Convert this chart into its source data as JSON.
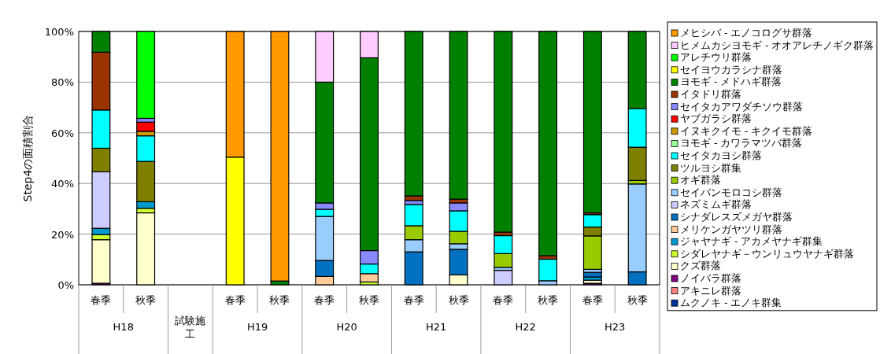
{
  "chart_data": {
    "type": "bar",
    "stacked": true,
    "ylabel": "Step4の面積割合",
    "categories": [
      "春季",
      "秋季",
      null,
      "春季",
      "秋季",
      "春季",
      "秋季",
      "春季",
      "秋季",
      "春季",
      "秋季",
      "春季",
      "秋季"
    ],
    "annotations": [
      "H18",
      "試験施工",
      "H19",
      "H20",
      "H21",
      "H22",
      "H23"
    ],
    "ylim": [
      0,
      100
    ],
    "yticks": [
      {
        "value": 0,
        "label": "0%"
      },
      {
        "value": 20,
        "label": "20%"
      },
      {
        "value": 40,
        "label": "40%"
      },
      {
        "value": 60,
        "label": "60%"
      },
      {
        "value": 80,
        "label": "80%"
      },
      {
        "value": 100,
        "label": "100%"
      }
    ],
    "grid": "y",
    "legend": "right",
    "series": [
      {
        "name": "ムクノキ - エノキ群集",
        "color": "#003399",
        "values": [
          0,
          0,
          null,
          0,
          0,
          0,
          0,
          0,
          0,
          0,
          0,
          0,
          0
        ]
      },
      {
        "name": "アキニレ群落",
        "color": "#ff8080",
        "values": [
          0,
          0,
          null,
          0,
          0,
          0,
          0,
          0,
          0,
          0,
          0,
          0,
          0
        ]
      },
      {
        "name": "ノイバラ群落",
        "color": "#800080",
        "values": [
          0.6,
          0,
          null,
          0,
          0,
          0,
          0,
          0,
          0,
          0,
          0,
          0.6,
          0
        ]
      },
      {
        "name": "クズ群落",
        "color": "#ffffcc",
        "values": [
          17.2,
          28.4,
          null,
          0,
          0,
          0,
          0,
          0,
          3.9,
          0,
          0,
          1.2,
          0
        ]
      },
      {
        "name": "シダレヤナギ－ウンリュウヤナギ群落",
        "color": "#ccff33",
        "values": [
          2.0,
          1.8,
          null,
          0,
          0,
          0,
          1.1,
          0,
          0,
          0,
          0,
          0,
          0
        ]
      },
      {
        "name": "ジャヤナギ - アカメヤナギ群集",
        "color": "#0099cc",
        "values": [
          2.5,
          2.6,
          null,
          0,
          0,
          0,
          0,
          0,
          0,
          0,
          0,
          1.3,
          0
        ]
      },
      {
        "name": "メリケンガヤツリ群落",
        "color": "#ffcc99",
        "values": [
          0,
          0,
          null,
          0,
          0,
          3.3,
          3.3,
          0,
          0,
          0,
          0,
          0,
          0
        ]
      },
      {
        "name": "シナダレスズメガヤ群落",
        "color": "#0070c0",
        "values": [
          0,
          0,
          null,
          0,
          0,
          6.3,
          0,
          13.0,
          10.1,
          0,
          0,
          1.8,
          5.1
        ]
      },
      {
        "name": "ネズミムギ群落",
        "color": "#ccccff",
        "values": [
          22.3,
          0,
          null,
          0,
          0,
          0,
          0,
          0,
          0,
          5.7,
          0,
          0,
          0
        ]
      },
      {
        "name": "セイバンモロコシ群落",
        "color": "#99ccff",
        "values": [
          0,
          0,
          null,
          0,
          0,
          17.4,
          0,
          4.8,
          2.2,
          1.2,
          1.6,
          1.2,
          34.7
        ]
      },
      {
        "name": "オギ群落",
        "color": "#99cc00",
        "values": [
          0,
          0,
          null,
          0,
          0,
          0,
          0,
          5.5,
          4.9,
          5.4,
          0,
          13.2,
          1.4
        ]
      },
      {
        "name": "ツルヨシ群集",
        "color": "#808000",
        "values": [
          9.3,
          15.9,
          null,
          0,
          0,
          0,
          0,
          0,
          0,
          0,
          0,
          3.5,
          13.1
        ]
      },
      {
        "name": "セイタカヨシ群落",
        "color": "#00ffff",
        "values": [
          15.1,
          10.1,
          null,
          0,
          0,
          2.8,
          3.8,
          8.4,
          8.1,
          7.1,
          8.5,
          4.9,
          15.3
        ]
      },
      {
        "name": "ヨモギ - カワラマツバ群落",
        "color": "#99ff99",
        "values": [
          0,
          0,
          null,
          0,
          0,
          0,
          0,
          0,
          0,
          0,
          0,
          0,
          0
        ]
      },
      {
        "name": "イヌキクイモ - キクイモ群落",
        "color": "#cc9900",
        "values": [
          0,
          1.8,
          null,
          0,
          0,
          0,
          0,
          0,
          0,
          0,
          0,
          0,
          0
        ]
      },
      {
        "name": "ヤブガラシ群落",
        "color": "#ff0000",
        "values": [
          0,
          3.6,
          null,
          0,
          0,
          0,
          0,
          0,
          0,
          0,
          0,
          0,
          0
        ]
      },
      {
        "name": "セイタカアワダチソウ群落",
        "color": "#8888ff",
        "values": [
          0,
          1.5,
          null,
          0,
          0,
          2.5,
          5.3,
          1.6,
          3.1,
          0,
          0,
          0,
          0
        ]
      },
      {
        "name": "イタドリ群落",
        "color": "#993300",
        "values": [
          22.8,
          0,
          null,
          0,
          0,
          0,
          0,
          1.8,
          1.5,
          1.4,
          1.4,
          0.7,
          0
        ]
      },
      {
        "name": "ヨモギ - メドハギ群落",
        "color": "#008000",
        "values": [
          8.2,
          0,
          null,
          0,
          1.5,
          47.7,
          76.1,
          64.9,
          66.2,
          79.2,
          88.5,
          71.6,
          30.4
        ]
      },
      {
        "name": "セイヨウカラシナ群落",
        "color": "#ffff00",
        "values": [
          0,
          0,
          null,
          50.4,
          0,
          0,
          0,
          0,
          0,
          0,
          0,
          0,
          0
        ]
      },
      {
        "name": "アレチウリ群落",
        "color": "#00ff00",
        "values": [
          0,
          34.3,
          null,
          0,
          0,
          0,
          0,
          0,
          0,
          0,
          0,
          0,
          0
        ]
      },
      {
        "name": "ヒメムカシヨモギ - オオアレチノギク群落",
        "color": "#ffccff",
        "values": [
          0,
          0,
          null,
          0,
          0,
          20.0,
          10.4,
          0,
          0,
          0,
          0,
          0,
          0
        ]
      },
      {
        "name": "メヒシバ - エノコログサ群落",
        "color": "#ff9900",
        "values": [
          0,
          0,
          null,
          49.6,
          98.5,
          0,
          0,
          0,
          0,
          0,
          0,
          0,
          0
        ]
      }
    ]
  }
}
